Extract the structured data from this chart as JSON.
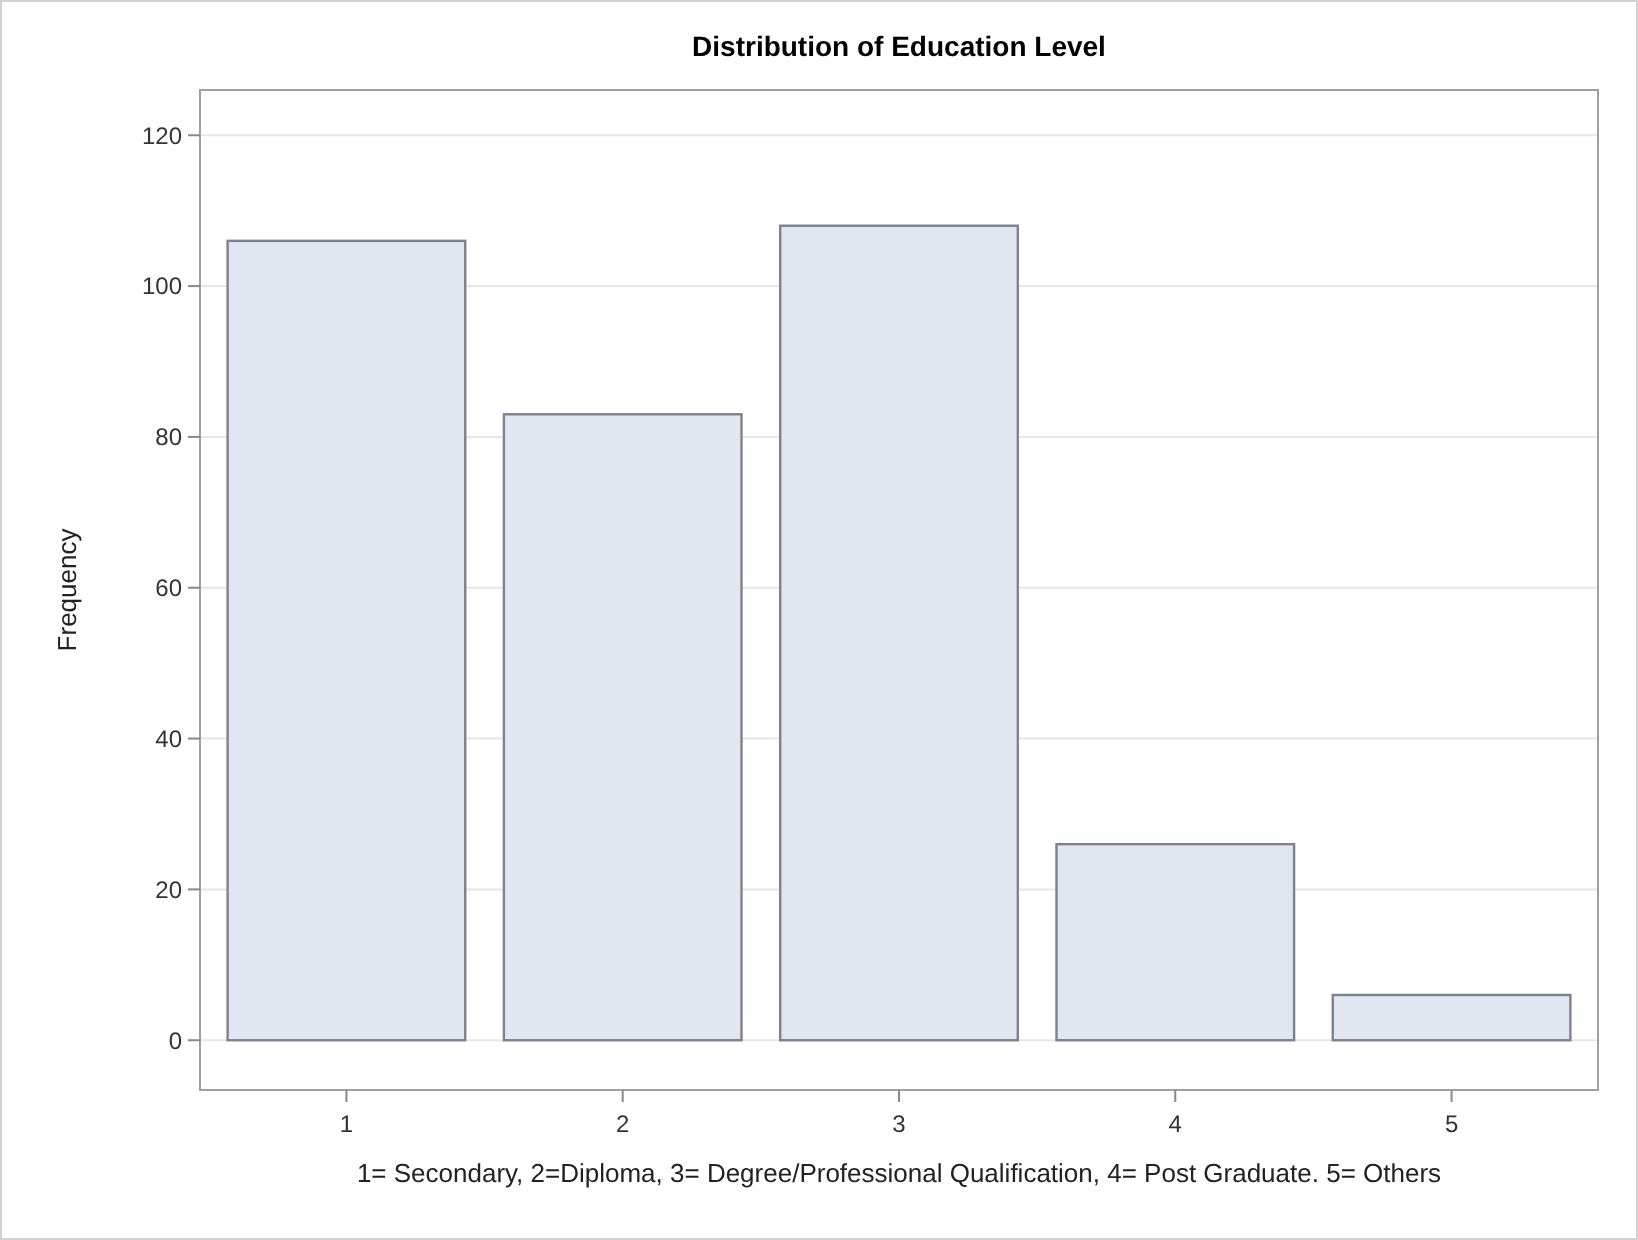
{
  "chart_data": {
    "type": "bar",
    "title": "Distribution of Education Level",
    "ylabel": "Frequency",
    "xlabel": "1= Secondary, 2=Diploma, 3= Degree/Professional Qualification, 4= Post Graduate. 5= Others",
    "categories": [
      "1",
      "2",
      "3",
      "4",
      "5"
    ],
    "values": [
      106,
      83,
      108,
      26,
      6
    ],
    "color": "#e1e6f0",
    "ylim": [
      -6.6,
      126
    ],
    "yticks": [
      0,
      20,
      40,
      60,
      80,
      100,
      120
    ],
    "grid": "y"
  }
}
